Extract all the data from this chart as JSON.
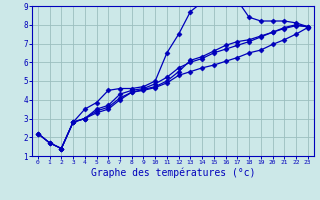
{
  "title": "",
  "xlabel": "Graphe des températures (°c)",
  "ylabel": "",
  "bg_color": "#cce8e8",
  "grid_color": "#9bbfbf",
  "line_color": "#0000bb",
  "xlim": [
    -0.5,
    23.5
  ],
  "ylim": [
    1,
    9
  ],
  "xticks": [
    0,
    1,
    2,
    3,
    4,
    5,
    6,
    7,
    8,
    9,
    10,
    11,
    12,
    13,
    14,
    15,
    16,
    17,
    18,
    19,
    20,
    21,
    22,
    23
  ],
  "yticks": [
    1,
    2,
    3,
    4,
    5,
    6,
    7,
    8,
    9
  ],
  "series1_x": [
    0,
    1,
    2,
    3,
    4,
    5,
    6,
    7,
    8,
    9,
    10,
    11,
    12,
    13,
    14,
    15,
    16,
    17,
    18,
    19,
    20,
    21,
    22,
    23
  ],
  "series1_y": [
    2.2,
    1.7,
    1.4,
    2.8,
    3.5,
    3.85,
    4.5,
    4.6,
    4.6,
    4.7,
    5.0,
    6.5,
    7.5,
    8.7,
    9.2,
    9.2,
    9.1,
    9.3,
    8.4,
    8.2,
    8.2,
    8.2,
    8.1,
    7.9
  ],
  "series2_x": [
    0,
    1,
    2,
    3,
    4,
    5,
    6,
    7,
    8,
    9,
    10,
    11,
    12,
    13,
    14,
    15,
    16,
    17,
    18,
    19,
    20,
    21,
    22,
    23
  ],
  "series2_y": [
    2.2,
    1.7,
    1.4,
    2.8,
    3.0,
    3.4,
    3.6,
    4.1,
    4.4,
    4.55,
    4.7,
    5.0,
    5.5,
    6.1,
    6.3,
    6.6,
    6.9,
    7.1,
    7.2,
    7.4,
    7.6,
    7.8,
    7.95,
    7.9
  ],
  "series3_x": [
    0,
    1,
    2,
    3,
    4,
    5,
    6,
    7,
    8,
    9,
    10,
    11,
    12,
    13,
    14,
    15,
    16,
    17,
    18,
    19,
    20,
    21,
    22,
    23
  ],
  "series3_y": [
    2.2,
    1.7,
    1.4,
    2.8,
    3.0,
    3.5,
    3.7,
    4.3,
    4.5,
    4.6,
    4.85,
    5.2,
    5.7,
    6.0,
    6.2,
    6.5,
    6.7,
    6.9,
    7.1,
    7.35,
    7.6,
    7.85,
    8.0,
    7.9
  ],
  "series4_x": [
    2,
    3,
    4,
    5,
    6,
    7,
    8,
    9,
    10,
    11,
    12,
    13,
    14,
    15,
    16,
    17,
    18,
    19,
    20,
    21,
    22,
    23
  ],
  "series4_y": [
    1.4,
    2.8,
    3.0,
    3.3,
    3.5,
    4.0,
    4.4,
    4.5,
    4.65,
    4.9,
    5.3,
    5.5,
    5.7,
    5.85,
    6.05,
    6.25,
    6.5,
    6.65,
    6.95,
    7.2,
    7.5,
    7.85
  ]
}
